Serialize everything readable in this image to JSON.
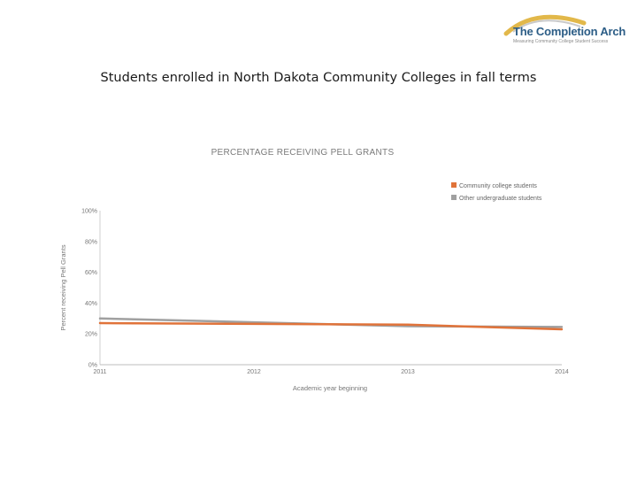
{
  "brand": {
    "name": "The Completion Arch",
    "tagline": "Measuring Community College Student Success",
    "colors": {
      "primary": "#2c5d86",
      "accent": "#e2b84a"
    }
  },
  "slide": {
    "title": "Students enrolled in North Dakota Community Colleges in fall terms"
  },
  "chart_data": {
    "type": "line",
    "title": "PERCENTAGE RECEIVING PELL GRANTS",
    "xlabel": "Academic year beginning",
    "ylabel": "Percent receiving Pell Grants",
    "categories": [
      "2011",
      "2012",
      "2013",
      "2014"
    ],
    "ylim": [
      0,
      100
    ],
    "yticks": [
      "0%",
      "20%",
      "40%",
      "60%",
      "80%",
      "100%"
    ],
    "grid": false,
    "legend_position": "top-right",
    "series": [
      {
        "name": "Community college students",
        "color": "#e0733a",
        "values": [
          27,
          26.5,
          26,
          23
        ]
      },
      {
        "name": "Other undergraduate students",
        "color": "#a0a0a0",
        "values": [
          30,
          27.5,
          25,
          24.5
        ]
      }
    ]
  }
}
